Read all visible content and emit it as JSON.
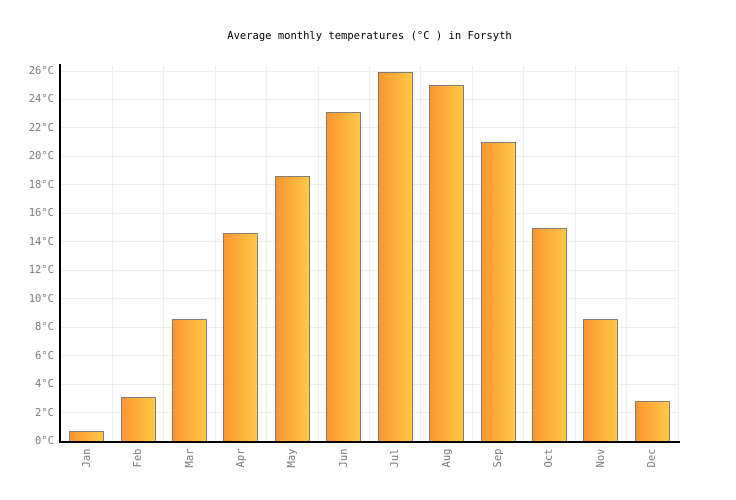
{
  "chart": {
    "title": "Average monthly temperatures (°C ) in Forsyth"
  },
  "chart_data": {
    "type": "bar",
    "title": "Average monthly temperatures (°C ) in Forsyth",
    "categories": [
      "Jan",
      "Feb",
      "Mar",
      "Apr",
      "May",
      "Jun",
      "Jul",
      "Aug",
      "Sep",
      "Oct",
      "Nov",
      "Dec"
    ],
    "values": [
      0.7,
      3.1,
      8.6,
      14.6,
      18.6,
      23.1,
      25.9,
      25.0,
      21.0,
      15.0,
      8.6,
      2.8
    ],
    "xlabel": "",
    "ylabel": "",
    "ylim": [
      0,
      26
    ],
    "y_tick_step": 2,
    "y_tick_suffix": "°C",
    "grid": true,
    "legend": false,
    "colors": {
      "bar_gradient_left": "#fb9630",
      "bar_gradient_right": "#ffc845",
      "bar_border": "#7d7d7d",
      "gridline": "#f0eeec",
      "axis": "#000000",
      "tick_label": "#7a7a7a",
      "title": "#000000",
      "background": "#ffffff"
    }
  }
}
